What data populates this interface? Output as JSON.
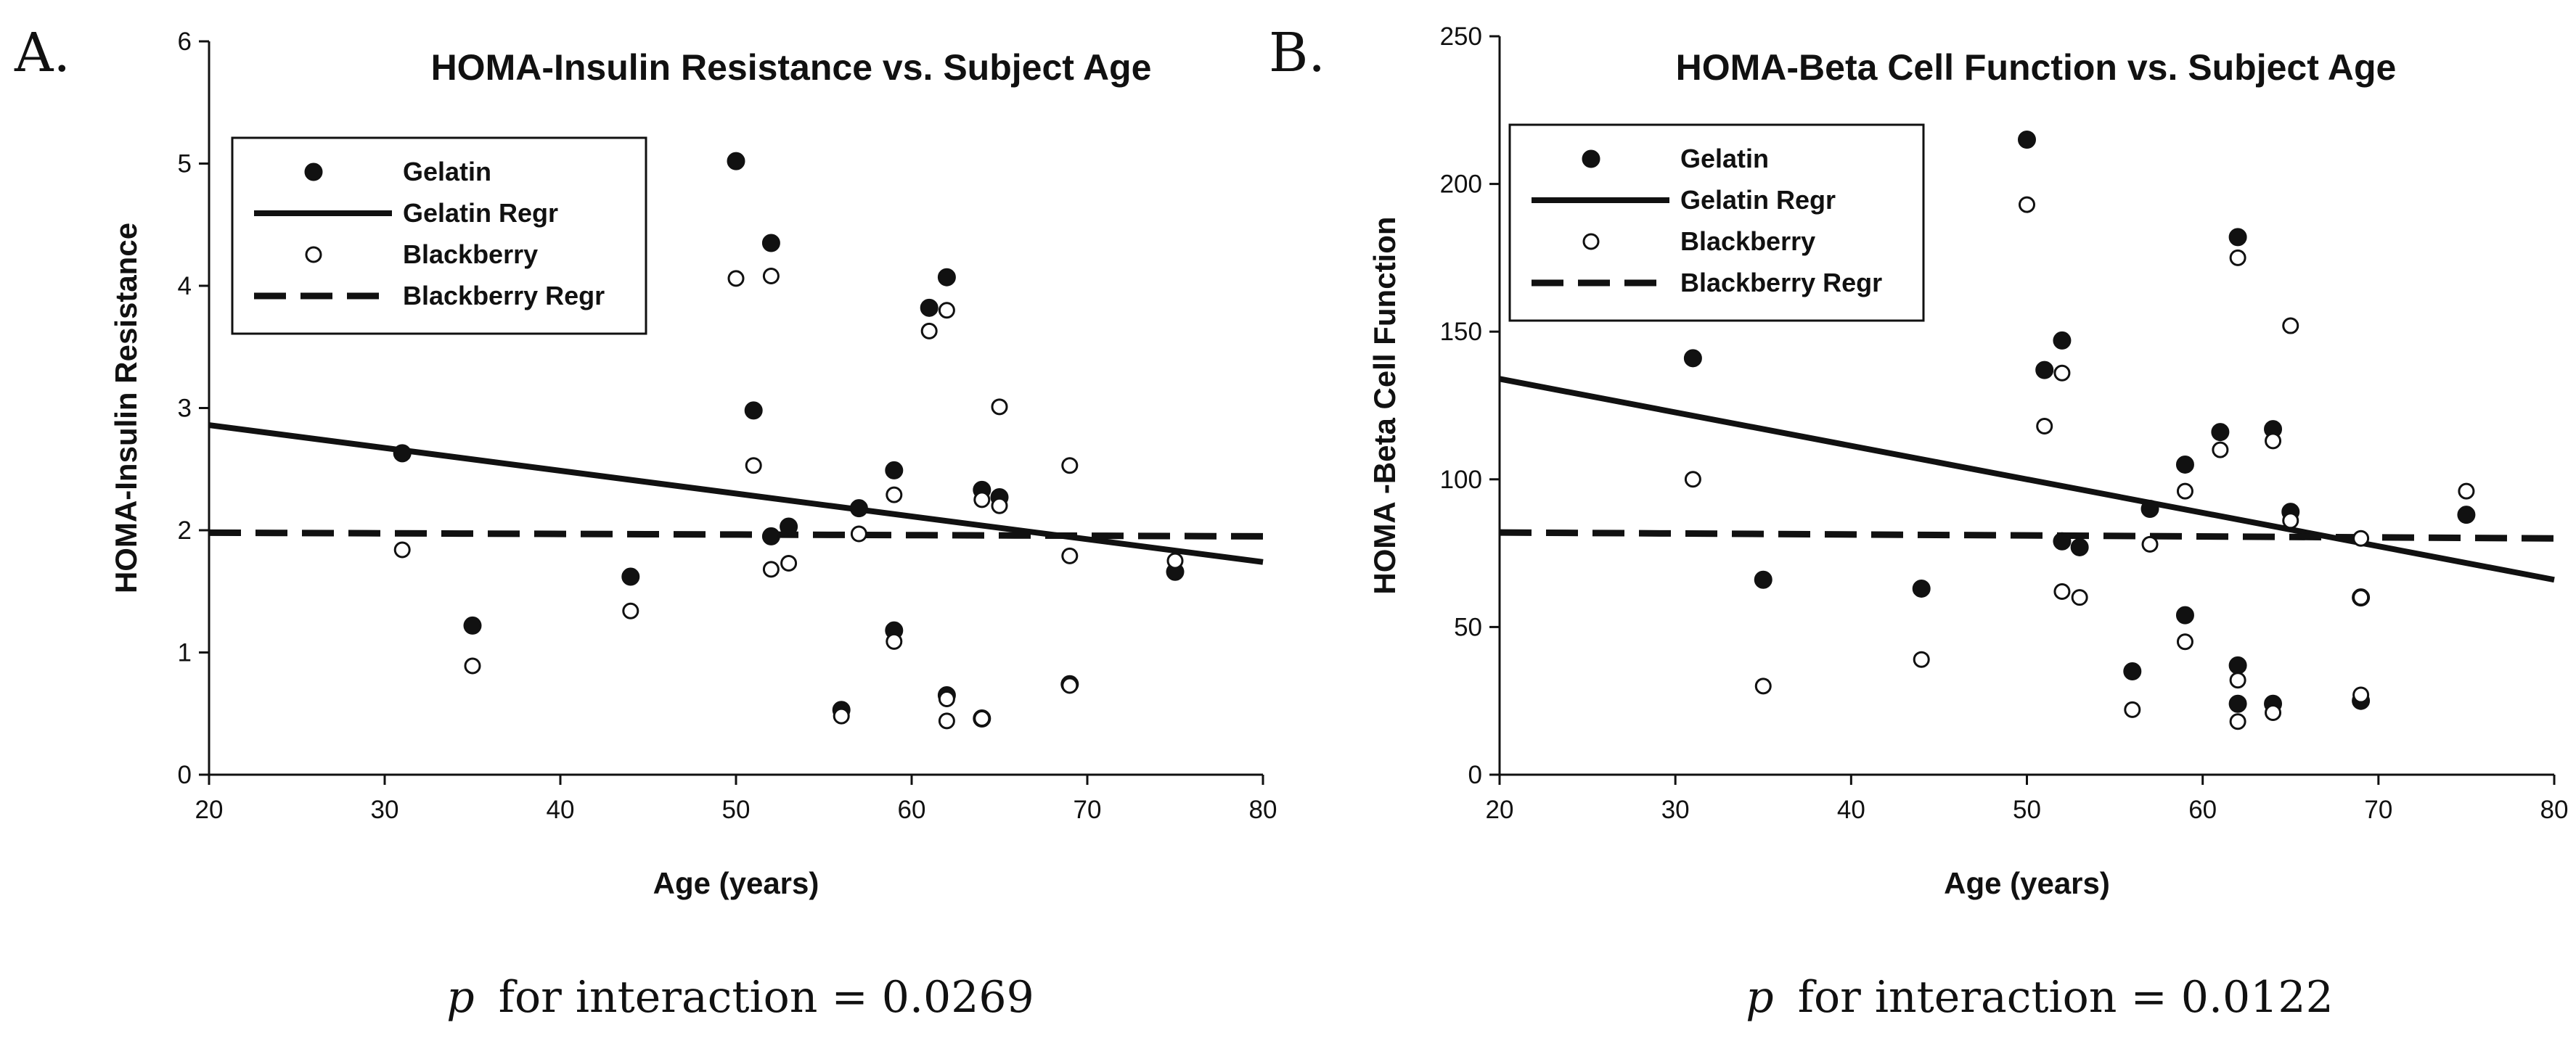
{
  "figure": {
    "p_values": [
      "for interaction = 0.0269",
      "for interaction = 0.0122"
    ],
    "p_symbol": "p"
  },
  "chart_data": [
    {
      "type": "scatter",
      "panel": "A.",
      "title": "HOMA-Insulin Resistance vs. Subject Age",
      "xlabel": "Age (years)",
      "ylabel": "HOMA-Insulin Resistance",
      "xlim": [
        20,
        80
      ],
      "ylim": [
        0,
        6
      ],
      "xticks": [
        "20",
        "30",
        "40",
        "50",
        "60",
        "70",
        "80"
      ],
      "yticks": [
        "0",
        "1",
        "2",
        "3",
        "4",
        "5",
        "6"
      ],
      "legend_position": "top-left",
      "legend": [
        "Gelatin",
        "Gelatin Regr",
        "Blackberry",
        "Blackberry Regr"
      ],
      "series": [
        {
          "name": "Gelatin",
          "kind": "points",
          "marker": "filled",
          "points": [
            [
              31,
              2.63
            ],
            [
              35,
              1.22
            ],
            [
              44,
              1.62
            ],
            [
              50,
              5.02
            ],
            [
              51,
              2.98
            ],
            [
              52,
              4.35
            ],
            [
              52,
              1.95
            ],
            [
              53,
              2.03
            ],
            [
              56,
              0.53
            ],
            [
              57,
              2.18
            ],
            [
              59,
              2.49
            ],
            [
              59,
              1.18
            ],
            [
              61,
              3.82
            ],
            [
              62,
              4.07
            ],
            [
              62,
              0.65
            ],
            [
              64,
              2.33
            ],
            [
              64,
              0.46
            ],
            [
              65,
              2.27
            ],
            [
              69,
              0.74
            ],
            [
              75,
              1.66
            ]
          ]
        },
        {
          "name": "Gelatin Regr",
          "kind": "line",
          "style": "solid",
          "points": [
            [
              20,
              2.86
            ],
            [
              80,
              1.74
            ]
          ]
        },
        {
          "name": "Blackberry",
          "kind": "points",
          "marker": "open",
          "points": [
            [
              31,
              1.84
            ],
            [
              35,
              0.89
            ],
            [
              44,
              1.34
            ],
            [
              50,
              4.06
            ],
            [
              51,
              2.53
            ],
            [
              52,
              4.08
            ],
            [
              52,
              1.68
            ],
            [
              53,
              1.73
            ],
            [
              56,
              0.48
            ],
            [
              57,
              1.97
            ],
            [
              59,
              2.29
            ],
            [
              59,
              1.09
            ],
            [
              61,
              3.63
            ],
            [
              62,
              3.8
            ],
            [
              62,
              0.62
            ],
            [
              62,
              0.44
            ],
            [
              64,
              2.25
            ],
            [
              64,
              0.46
            ],
            [
              65,
              2.2
            ],
            [
              65,
              3.01
            ],
            [
              69,
              2.53
            ],
            [
              69,
              1.79
            ],
            [
              69,
              0.73
            ],
            [
              75,
              1.75
            ]
          ]
        },
        {
          "name": "Blackberry Regr",
          "kind": "line",
          "style": "dashed",
          "points": [
            [
              20,
              1.98
            ],
            [
              80,
              1.95
            ]
          ]
        }
      ]
    },
    {
      "type": "scatter",
      "panel": "B.",
      "title": "HOMA-Beta Cell Function vs. Subject Age",
      "xlabel": "Age (years)",
      "ylabel": "HOMA -Beta Cell Function",
      "xlim": [
        20,
        80
      ],
      "ylim": [
        0,
        250
      ],
      "xticks": [
        "20",
        "30",
        "40",
        "50",
        "60",
        "70",
        "80"
      ],
      "yticks": [
        "0",
        "50",
        "100",
        "150",
        "200",
        "250"
      ],
      "legend_position": "top-left",
      "legend": [
        "Gelatin",
        "Gelatin Regr",
        "Blackberry",
        "Blackberry Regr"
      ],
      "series": [
        {
          "name": "Gelatin",
          "kind": "points",
          "marker": "filled",
          "points": [
            [
              31,
              141
            ],
            [
              35,
              66
            ],
            [
              44,
              63
            ],
            [
              50,
              215
            ],
            [
              51,
              137
            ],
            [
              52,
              147
            ],
            [
              52,
              79
            ],
            [
              53,
              77
            ],
            [
              56,
              35
            ],
            [
              57,
              90
            ],
            [
              59,
              105
            ],
            [
              59,
              54
            ],
            [
              61,
              116
            ],
            [
              62,
              182
            ],
            [
              62,
              37
            ],
            [
              62,
              24
            ],
            [
              64,
              117
            ],
            [
              64,
              24
            ],
            [
              65,
              89
            ],
            [
              69,
              60
            ],
            [
              69,
              25
            ],
            [
              75,
              88
            ]
          ]
        },
        {
          "name": "Gelatin Regr",
          "kind": "line",
          "style": "solid",
          "points": [
            [
              20,
              134
            ],
            [
              80,
              66
            ]
          ]
        },
        {
          "name": "Blackberry",
          "kind": "points",
          "marker": "open",
          "points": [
            [
              31,
              100
            ],
            [
              35,
              30
            ],
            [
              44,
              39
            ],
            [
              50,
              193
            ],
            [
              51,
              118
            ],
            [
              52,
              136
            ],
            [
              52,
              62
            ],
            [
              53,
              60
            ],
            [
              56,
              22
            ],
            [
              57,
              78
            ],
            [
              59,
              96
            ],
            [
              59,
              45
            ],
            [
              61,
              110
            ],
            [
              62,
              175
            ],
            [
              62,
              32
            ],
            [
              62,
              18
            ],
            [
              64,
              113
            ],
            [
              64,
              21
            ],
            [
              65,
              152
            ],
            [
              65,
              86
            ],
            [
              69,
              80
            ],
            [
              69,
              60
            ],
            [
              69,
              27
            ],
            [
              75,
              96
            ]
          ]
        },
        {
          "name": "Blackberry Regr",
          "kind": "line",
          "style": "dashed",
          "points": [
            [
              20,
              82
            ],
            [
              80,
              80
            ]
          ]
        }
      ]
    }
  ]
}
